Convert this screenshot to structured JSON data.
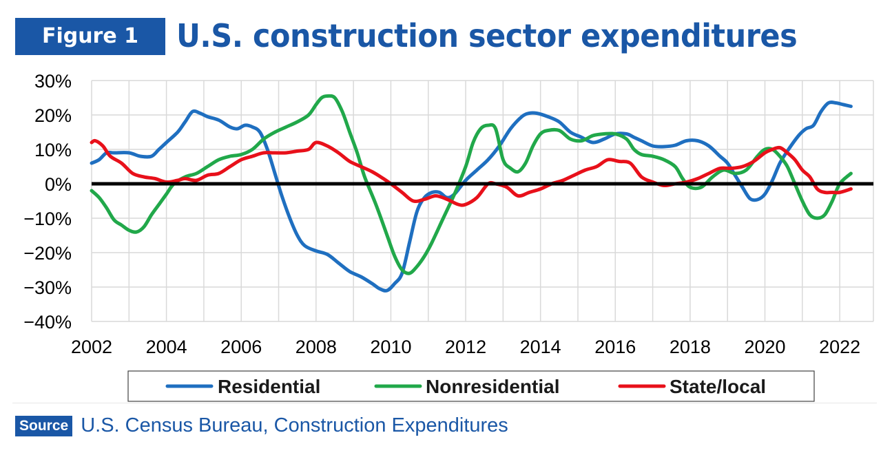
{
  "header": {
    "figure_label": "Figure 1",
    "title": "U.S. construction sector expenditures"
  },
  "source": {
    "label": "Source",
    "text": "U.S. Census Bureau, Construction Expenditures"
  },
  "colors": {
    "brand": "#1a57a6",
    "residential": "#1f6fc0",
    "nonresidential": "#21a84a",
    "statelocal": "#e8101a",
    "zero_line": "#000000",
    "grid": "#d9d9d9"
  },
  "chart_data": {
    "type": "line",
    "title": "U.S. construction sector expenditures",
    "xlabel": "",
    "ylabel": "",
    "xlim": [
      2002,
      2022.9
    ],
    "ylim": [
      -40,
      30
    ],
    "y_ticks": [
      30,
      20,
      10,
      0,
      -10,
      -20,
      -30,
      -40
    ],
    "y_tick_labels": [
      "30%",
      "20%",
      "10%",
      "0%",
      "−10%",
      "−20%",
      "−30%",
      "−40%"
    ],
    "x_ticks": [
      2002,
      2004,
      2006,
      2008,
      2010,
      2012,
      2014,
      2016,
      2018,
      2020,
      2022
    ],
    "x_tick_labels": [
      "2002",
      "2004",
      "2006",
      "2008",
      "2010",
      "2012",
      "2014",
      "2016",
      "2018",
      "2020",
      "2022"
    ],
    "legend_position": "bottom",
    "series": [
      {
        "name": "Residential",
        "color": "#1f6fc0",
        "x": [
          2002,
          2002.2,
          2002.4,
          2002.6,
          2003,
          2003.3,
          2003.6,
          2003.8,
          2004,
          2004.3,
          2004.5,
          2004.7,
          2004.9,
          2005.1,
          2005.4,
          2005.7,
          2005.9,
          2006.1,
          2006.3,
          2006.5,
          2006.7,
          2006.9,
          2007.1,
          2007.3,
          2007.5,
          2007.7,
          2008,
          2008.3,
          2008.6,
          2008.9,
          2009.2,
          2009.5,
          2009.7,
          2009.9,
          2010.1,
          2010.3,
          2010.5,
          2010.7,
          2010.9,
          2011.1,
          2011.3,
          2011.5,
          2011.7,
          2012,
          2012.3,
          2012.6,
          2012.9,
          2013.2,
          2013.5,
          2013.7,
          2013.9,
          2014.2,
          2014.5,
          2014.8,
          2015.1,
          2015.4,
          2015.7,
          2016,
          2016.3,
          2016.5,
          2016.7,
          2017,
          2017.3,
          2017.6,
          2017.9,
          2018.2,
          2018.5,
          2018.8,
          2019,
          2019.2,
          2019.4,
          2019.6,
          2019.8,
          2020,
          2020.2,
          2020.4,
          2020.6,
          2020.9,
          2021.1,
          2021.3,
          2021.5,
          2021.7,
          2021.9,
          2022.1,
          2022.3
        ],
        "values": [
          6,
          7,
          9,
          9,
          9,
          8,
          8,
          10,
          12,
          15,
          18,
          21,
          20.5,
          19.5,
          18.5,
          16.5,
          16,
          17,
          16.5,
          15,
          10,
          3,
          -4,
          -10,
          -15,
          -18,
          -19.5,
          -20.5,
          -23,
          -25.5,
          -27,
          -29,
          -30.5,
          -31,
          -29,
          -26,
          -17,
          -8,
          -4,
          -2.5,
          -2.5,
          -4,
          -3,
          1,
          4,
          7,
          11,
          16,
          19.5,
          20.5,
          20.5,
          19.5,
          18,
          15,
          13.5,
          12,
          13,
          14.5,
          14.5,
          13.5,
          12.5,
          11,
          10.8,
          11.2,
          12.5,
          12.5,
          11,
          8,
          6,
          2.5,
          -1,
          -4.3,
          -4.6,
          -3,
          1,
          6,
          9.5,
          14,
          16,
          17,
          21,
          23.5,
          23.5,
          23,
          22.5
        ]
      },
      {
        "name": "Nonresidential",
        "color": "#21a84a",
        "x": [
          2002,
          2002.2,
          2002.4,
          2002.6,
          2002.8,
          2003,
          2003.2,
          2003.4,
          2003.6,
          2003.8,
          2004,
          2004.2,
          2004.5,
          2004.8,
          2005.1,
          2005.4,
          2005.7,
          2006,
          2006.3,
          2006.6,
          2006.9,
          2007.2,
          2007.5,
          2007.8,
          2008,
          2008.15,
          2008.3,
          2008.5,
          2008.7,
          2008.9,
          2009.1,
          2009.3,
          2009.6,
          2009.9,
          2010.1,
          2010.3,
          2010.5,
          2010.7,
          2010.9,
          2011.1,
          2011.4,
          2011.7,
          2012,
          2012.2,
          2012.4,
          2012.6,
          2012.8,
          2013,
          2013.2,
          2013.4,
          2013.6,
          2013.8,
          2014,
          2014.2,
          2014.5,
          2014.8,
          2015.1,
          2015.4,
          2015.7,
          2016,
          2016.3,
          2016.5,
          2016.7,
          2017,
          2017.3,
          2017.6,
          2017.8,
          2018,
          2018.3,
          2018.6,
          2018.9,
          2019.2,
          2019.5,
          2019.8,
          2020,
          2020.2,
          2020.4,
          2020.6,
          2020.8,
          2021,
          2021.2,
          2021.4,
          2021.6,
          2021.8,
          2022,
          2022.3
        ],
        "values": [
          -2,
          -4,
          -7,
          -10.5,
          -12,
          -13.5,
          -14,
          -12.5,
          -9,
          -6,
          -3,
          0,
          2,
          3,
          5,
          7,
          8,
          8.5,
          10,
          13,
          15,
          16.5,
          18,
          20,
          23,
          25,
          25.5,
          25,
          21,
          15,
          9,
          2,
          -6,
          -15,
          -21,
          -25,
          -26,
          -24,
          -21,
          -17,
          -10,
          -3,
          5,
          12,
          16,
          17,
          16,
          7,
          4.5,
          3.5,
          6,
          11,
          14.5,
          15.5,
          15.5,
          13,
          12.5,
          14,
          14.5,
          14.5,
          13,
          10,
          8.5,
          8,
          7,
          5,
          1.5,
          -1,
          -1,
          2,
          4,
          3,
          4,
          8,
          10,
          10,
          8,
          5,
          0,
          -5,
          -9,
          -10,
          -9,
          -5,
          0,
          3
        ]
      },
      {
        "name": "State/local",
        "color": "#e8101a",
        "x": [
          2002,
          2002.1,
          2002.3,
          2002.5,
          2002.8,
          2003.1,
          2003.4,
          2003.7,
          2004,
          2004.3,
          2004.5,
          2004.8,
          2005.1,
          2005.4,
          2005.7,
          2006,
          2006.3,
          2006.6,
          2006.9,
          2007.2,
          2007.5,
          2007.8,
          2008,
          2008.3,
          2008.6,
          2008.9,
          2009.2,
          2009.5,
          2009.8,
          2010,
          2010.3,
          2010.6,
          2010.9,
          2011.2,
          2011.5,
          2011.8,
          2012,
          2012.3,
          2012.6,
          2012.8,
          2013.1,
          2013.4,
          2013.7,
          2014,
          2014.3,
          2014.6,
          2014.9,
          2015.2,
          2015.5,
          2015.8,
          2016.1,
          2016.4,
          2016.7,
          2017,
          2017.3,
          2017.6,
          2017.9,
          2018.2,
          2018.5,
          2018.8,
          2019.1,
          2019.4,
          2019.7,
          2020,
          2020.2,
          2020.4,
          2020.6,
          2020.8,
          2021,
          2021.2,
          2021.4,
          2021.6,
          2021.8,
          2022,
          2022.3
        ],
        "values": [
          12,
          12.5,
          11,
          8,
          6,
          3,
          2,
          1.5,
          0.5,
          1,
          1.5,
          1,
          2.5,
          3,
          5,
          7,
          8,
          9,
          9,
          9,
          9.5,
          10,
          12,
          11,
          9,
          6.5,
          5,
          3.5,
          1.5,
          0,
          -2.5,
          -5,
          -4.5,
          -3.5,
          -4.5,
          -6,
          -6,
          -4,
          0,
          0,
          -1,
          -3.5,
          -2.5,
          -1.5,
          0,
          1,
          2.5,
          4,
          5,
          7,
          6.5,
          6,
          2,
          0.5,
          -0.5,
          0,
          0.5,
          1.5,
          3,
          4.5,
          4.5,
          5,
          6.5,
          9,
          10,
          10.5,
          9,
          7,
          4,
          2,
          -1.5,
          -2.5,
          -2.5,
          -2.5,
          -1.5
        ]
      }
    ]
  }
}
